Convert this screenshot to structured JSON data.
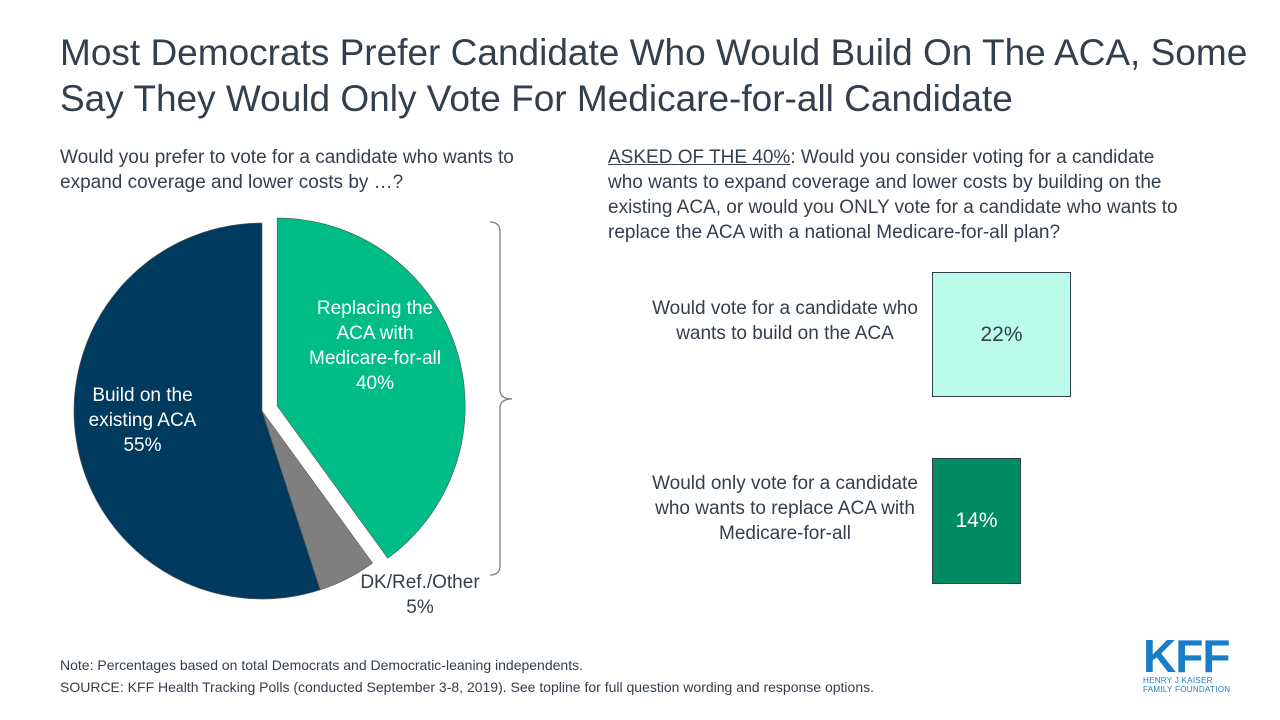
{
  "title": "Most Democrats Prefer Candidate Who Would Build On The ACA, Some Say They Would Only Vote For Medicare-for-all Candidate",
  "left_question": "Would you prefer to vote for a candidate who wants to expand coverage and lower costs by …?",
  "right_question": {
    "prefix": "ASKED OF THE 40%",
    "text": ": Would you consider voting for a candidate who wants to expand coverage and lower costs by building on the existing ACA, or would you ONLY vote for a candidate who wants to replace the ACA with a national Medicare-for-all plan?"
  },
  "chart_data": [
    {
      "type": "pie",
      "slices": [
        {
          "label": "Replacing the ACA with Medicare-for-all",
          "value": 40,
          "display": "40%",
          "color": "#00bc86",
          "exploded": true
        },
        {
          "label": "DK/Ref./Other",
          "value": 5,
          "display": "5%",
          "color": "#7f7f7f"
        },
        {
          "label": "Build on the existing ACA",
          "value": 55,
          "display": "55%",
          "color": "#003a5f"
        }
      ]
    },
    {
      "type": "table",
      "rows": [
        {
          "label": "Would vote for a candidate who wants to build on the ACA",
          "value": 22,
          "display": "22%",
          "color": "#bbfbea"
        },
        {
          "label": "Would only vote for a candidate who wants to replace ACA with Medicare-for-all",
          "value": 14,
          "display": "14%",
          "color": "#008c63"
        }
      ]
    }
  ],
  "note": "Note: Percentages based on total Democrats and Democratic-leaning independents.",
  "source": "SOURCE: KFF Health Tracking Polls (conducted September 3-8, 2019). See topline for full question wording and response options.",
  "logo": {
    "big": "KFF",
    "line1": "HENRY J KAISER",
    "line2": "FAMILY FOUNDATION"
  }
}
